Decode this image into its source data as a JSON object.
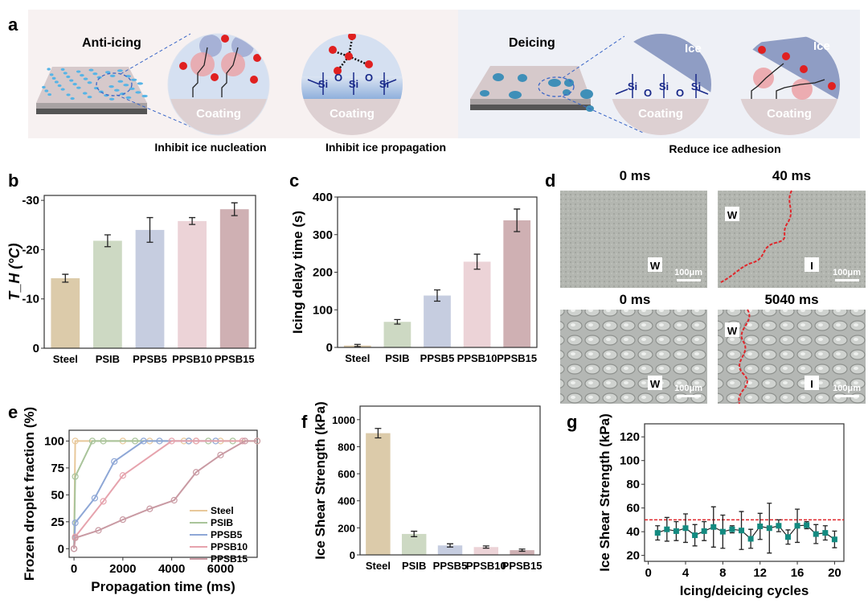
{
  "panel_labels": {
    "a": "a",
    "b": "b",
    "c": "c",
    "d": "d",
    "e": "e",
    "f": "f",
    "g": "g"
  },
  "panel_a": {
    "anti_icing_title": "Anti-icing",
    "deicing_title": "Deicing",
    "coating_label": "Coating",
    "ice_label": "Ice",
    "si_label": "Si",
    "o_label": "O",
    "caption_nucleation": "Inhibit ice nucleation",
    "caption_propagation": "Inhibit ice propagation",
    "caption_adhesion": "Reduce ice adhesion",
    "colors": {
      "anti_bg": "#f7f1f1",
      "deice_bg": "#eef0f6",
      "droplet": "#56b4e6",
      "ice": "#8f9dc4",
      "coating": "#ddd0d2"
    }
  },
  "panel_d": {
    "times": [
      "0 ms",
      "40 ms",
      "0 ms",
      "5040 ms"
    ],
    "water_label": "W",
    "ice_label": "I",
    "scale_bar": "100μm",
    "front_color": "#e0262b"
  },
  "chart_data": [
    {
      "panel": "b",
      "type": "bar",
      "categories": [
        "Steel",
        "PSIB",
        "PPSB5",
        "PPSB10",
        "PPSB15"
      ],
      "values": [
        -14.2,
        -21.8,
        -24.0,
        -25.8,
        -28.2
      ],
      "errors": [
        0.8,
        1.2,
        2.5,
        0.7,
        1.3
      ],
      "colors": [
        "#dccbaa",
        "#cdd9c3",
        "#c6cde0",
        "#ecd3d7",
        "#cfb0b3"
      ],
      "ylabel": "T_H (°C)",
      "ylabel_main": "T",
      "ylabel_sub": "H",
      "ylabel_unit": " (°C)",
      "ylim": [
        0,
        -31
      ],
      "yticks": [
        0,
        -10,
        -20,
        -30
      ]
    },
    {
      "panel": "c",
      "type": "bar",
      "categories": [
        "Steel",
        "PSIB",
        "PPSB5",
        "PPSB10",
        "PPSB15"
      ],
      "values": [
        5,
        68,
        138,
        228,
        338
      ],
      "errors": [
        3,
        6,
        15,
        20,
        30
      ],
      "colors": [
        "#dccbaa",
        "#cdd9c3",
        "#c6cde0",
        "#ecd3d7",
        "#cfb0b3"
      ],
      "ylabel": "Icing delay time (s)",
      "ylim": [
        0,
        400
      ],
      "yticks": [
        0,
        100,
        200,
        300,
        400
      ]
    },
    {
      "panel": "e",
      "type": "line",
      "xlabel": "Propagation time (ms)",
      "ylabel": "Frozen droplet fraction (%)",
      "xlim": [
        -200,
        7500
      ],
      "ylim": [
        -8,
        110
      ],
      "xticks": [
        0,
        2000,
        4000,
        6000
      ],
      "yticks": [
        0,
        25,
        50,
        75,
        100
      ],
      "legend": "bottom-right",
      "series": [
        {
          "name": "Steel",
          "color": "#e8c89a",
          "x": [
            0,
            50,
            2000,
            3100,
            4500,
            5000,
            6000,
            7500
          ],
          "y": [
            0,
            100,
            100,
            100,
            100,
            100,
            100,
            100
          ]
        },
        {
          "name": "PSIB",
          "color": "#a9c49a",
          "x": [
            0,
            50,
            750,
            1200,
            2500,
            4700,
            5500,
            6500
          ],
          "y": [
            0,
            67,
            100,
            100,
            100,
            100,
            100,
            100
          ]
        },
        {
          "name": "PPSB5",
          "color": "#8ea7d6",
          "x": [
            0,
            50,
            850,
            1650,
            2850,
            3500,
            4700,
            5800
          ],
          "y": [
            0,
            24,
            47,
            81,
            100,
            100,
            100,
            100
          ]
        },
        {
          "name": "PPSB10",
          "color": "#e6a3ad",
          "x": [
            0,
            50,
            1200,
            2000,
            4000,
            5000,
            6900
          ],
          "y": [
            0,
            11,
            44,
            68,
            100,
            100,
            100
          ]
        },
        {
          "name": "PPSB15",
          "color": "#c99aa3",
          "x": [
            0,
            50,
            1000,
            2000,
            3100,
            4100,
            5000,
            6000,
            7000,
            7500
          ],
          "y": [
            0,
            10,
            17,
            27,
            37,
            45,
            71,
            87,
            100,
            100
          ]
        }
      ]
    },
    {
      "panel": "f",
      "type": "bar",
      "categories": [
        "Steel",
        "PSIB",
        "PPSB5",
        "PPSB10",
        "PPSB15"
      ],
      "values": [
        900,
        155,
        70,
        58,
        35
      ],
      "errors": [
        35,
        20,
        12,
        8,
        8
      ],
      "colors": [
        "#dccbaa",
        "#cdd9c3",
        "#c6cde0",
        "#ecd3d7",
        "#cfb0b3"
      ],
      "ylabel": "Ice Shear Strength (kPa)",
      "ylim": [
        0,
        1100
      ],
      "yticks": [
        0,
        200,
        400,
        600,
        800,
        1000
      ]
    },
    {
      "panel": "g",
      "type": "scatter",
      "xlabel": "Icing/deicing cycles",
      "ylabel": "Ice Shear Strength (kPa)",
      "xlim": [
        -0.4,
        21
      ],
      "ylim": [
        15,
        131
      ],
      "xticks": [
        0,
        4,
        8,
        12,
        16,
        20
      ],
      "yticks": [
        20,
        40,
        60,
        80,
        100,
        120
      ],
      "x": [
        1,
        2,
        3,
        4,
        5,
        6,
        7,
        8,
        9,
        10,
        11,
        12,
        13,
        14,
        15,
        16,
        17,
        18,
        19,
        20
      ],
      "y": [
        39,
        42,
        40.5,
        43,
        37,
        40.5,
        44,
        40,
        42,
        41,
        34,
        44.5,
        43,
        45,
        35.5,
        45,
        45.5,
        38,
        39,
        33.5
      ],
      "errors": [
        6,
        10,
        8,
        12,
        9,
        8,
        17,
        14,
        3,
        16,
        8,
        11,
        21,
        5,
        6,
        14,
        3,
        8,
        6,
        7
      ],
      "marker_color": "#138a80",
      "threshold": 50,
      "threshold_color": "#e0262b"
    }
  ]
}
